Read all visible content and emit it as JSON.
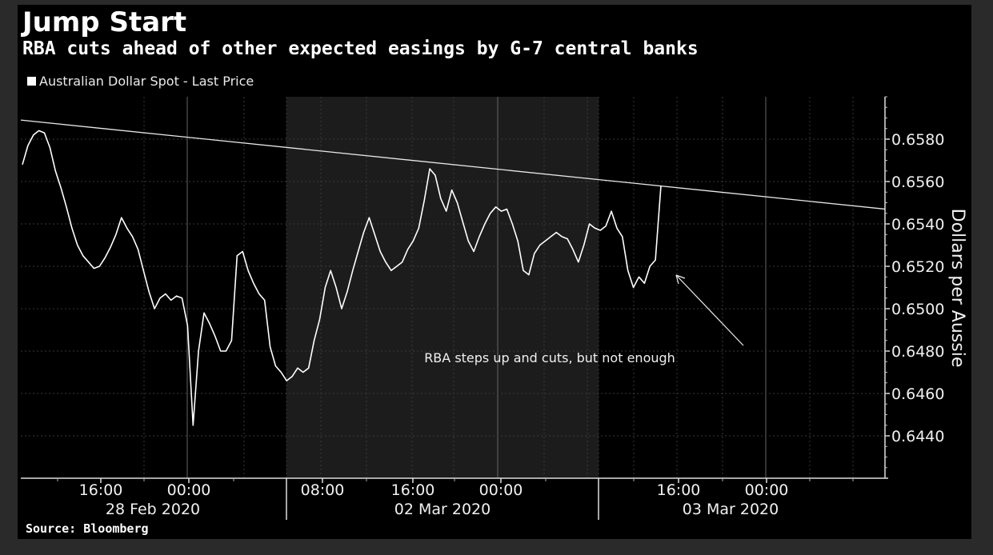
{
  "chart_data": {
    "type": "line",
    "title": "Jump Start",
    "subtitle": "RBA cuts ahead of other expected easings by G-7 central banks",
    "source": "Source: Bloomberg",
    "ylabel": "Dollars per Aussie",
    "ylim": [
      0.642,
      0.66
    ],
    "grid": true,
    "legend_position": "top-left",
    "colors": {
      "background": "#000000",
      "shade": "#1c1c1c",
      "line": "#ffffff",
      "grid": "#444444"
    },
    "y_ticks": [
      "0.6580",
      "0.6560",
      "0.6540",
      "0.6520",
      "0.6500",
      "0.6480",
      "0.6460",
      "0.6440"
    ],
    "x_time_ticks": [
      "16:00",
      "00:00",
      "08:00",
      "16:00",
      "00:00",
      "16:00",
      "00:00"
    ],
    "x_date_labels": [
      "28 Feb 2020",
      "02 Mar 2020",
      "03 Mar 2020"
    ],
    "annotation": "RBA steps up and cuts, but not enough",
    "trendline": {
      "start": 0.6589,
      "end": 0.6547
    },
    "series": [
      {
        "name": "Australian Dollar Spot - Last Price",
        "values": [
          0.6568,
          0.6577,
          0.6582,
          0.6584,
          0.6583,
          0.6576,
          0.6565,
          0.6557,
          0.6548,
          0.6538,
          0.653,
          0.6525,
          0.6522,
          0.6519,
          0.652,
          0.6524,
          0.6529,
          0.6535,
          0.6543,
          0.6538,
          0.6534,
          0.6528,
          0.6518,
          0.6508,
          0.65,
          0.6505,
          0.6507,
          0.6504,
          0.6506,
          0.6505,
          0.6492,
          0.6445,
          0.648,
          0.6498,
          0.6493,
          0.6487,
          0.648,
          0.648,
          0.6485,
          0.6525,
          0.6527,
          0.6518,
          0.6512,
          0.6507,
          0.6504,
          0.6482,
          0.6473,
          0.647,
          0.6466,
          0.6468,
          0.6472,
          0.647,
          0.6472,
          0.6485,
          0.6495,
          0.651,
          0.6518,
          0.651,
          0.65,
          0.6508,
          0.6518,
          0.6527,
          0.6536,
          0.6543,
          0.6535,
          0.6527,
          0.6522,
          0.6518,
          0.652,
          0.6522,
          0.6528,
          0.6532,
          0.6538,
          0.6551,
          0.6566,
          0.6563,
          0.6552,
          0.6546,
          0.6556,
          0.655,
          0.6541,
          0.6532,
          0.6527,
          0.6534,
          0.654,
          0.6545,
          0.6548,
          0.6546,
          0.6547,
          0.654,
          0.6532,
          0.6518,
          0.6516,
          0.6526,
          0.653,
          0.6532,
          0.6534,
          0.6536,
          0.6534,
          0.6533,
          0.6528,
          0.6522,
          0.653,
          0.654,
          0.6538,
          0.6537,
          0.6539,
          0.6546,
          0.6538,
          0.6534,
          0.6518,
          0.651,
          0.6515,
          0.6512,
          0.652,
          0.6523,
          0.6558
        ]
      }
    ]
  }
}
